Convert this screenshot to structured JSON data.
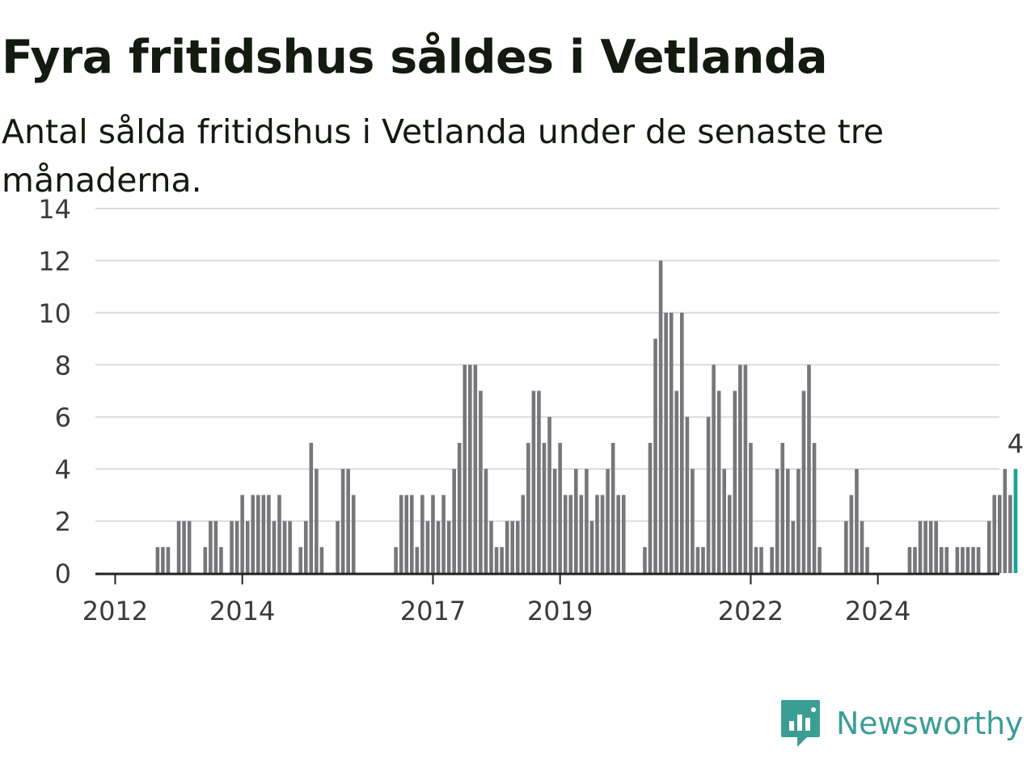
{
  "header": {
    "title": "Fyra fritidshus såldes i Vetlanda",
    "subtitle": "Antal sålda fritidshus i Vetlanda under de senaste tre månaderna."
  },
  "chart_data": {
    "type": "bar",
    "x_start": "2011-10",
    "x_interval": "month",
    "values": [
      0,
      0,
      0,
      0,
      0,
      0,
      0,
      0,
      0,
      0,
      0,
      1,
      1,
      1,
      0,
      2,
      2,
      2,
      0,
      0,
      1,
      2,
      2,
      1,
      0,
      2,
      2,
      3,
      2,
      3,
      3,
      3,
      3,
      2,
      3,
      2,
      2,
      0,
      1,
      2,
      5,
      4,
      1,
      0,
      0,
      2,
      4,
      4,
      3,
      0,
      0,
      0,
      0,
      0,
      0,
      0,
      1,
      3,
      3,
      3,
      1,
      3,
      2,
      3,
      2,
      3,
      2,
      4,
      5,
      8,
      8,
      8,
      7,
      4,
      2,
      1,
      1,
      2,
      2,
      2,
      3,
      5,
      7,
      7,
      5,
      6,
      4,
      5,
      3,
      3,
      4,
      3,
      4,
      2,
      3,
      3,
      4,
      5,
      3,
      3,
      0,
      0,
      0,
      1,
      5,
      9,
      12,
      10,
      10,
      7,
      10,
      6,
      4,
      1,
      1,
      6,
      8,
      7,
      4,
      3,
      7,
      8,
      8,
      5,
      1,
      1,
      0,
      1,
      4,
      5,
      4,
      2,
      4,
      7,
      8,
      5,
      1,
      0,
      0,
      0,
      0,
      2,
      3,
      4,
      2,
      1,
      0,
      0,
      0,
      0,
      0,
      0,
      0,
      1,
      1,
      2,
      2,
      2,
      2,
      1,
      1,
      0,
      1,
      1,
      1,
      1,
      1,
      0,
      2,
      3,
      3,
      4,
      3,
      4
    ],
    "xtick_labels": [
      "2012",
      "2014",
      "2017",
      "2019",
      "2022",
      "2024"
    ],
    "ytick_labels": [
      "0",
      "2",
      "4",
      "6",
      "8",
      "10",
      "12",
      "14"
    ],
    "ylim": [
      0,
      14
    ],
    "grid": "horizontal",
    "highlight_last": true,
    "last_value_label": "4",
    "colors": {
      "bar": "#77767b",
      "highlight": "#15a39a",
      "grid": "#dcdcdc",
      "axis": "#222222"
    }
  },
  "footer": {
    "logo_icon": "newsworthy-chart-bubble-icon",
    "logo_text": "Newsworthy",
    "logo_color": "#3b9e95"
  }
}
